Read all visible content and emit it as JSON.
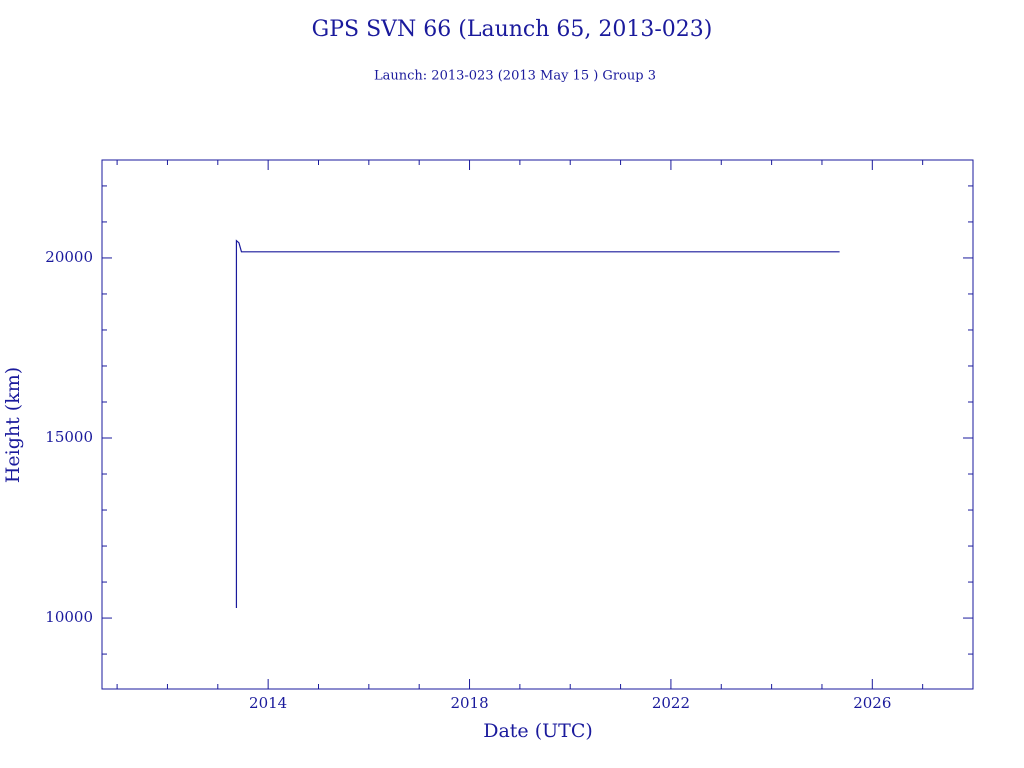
{
  "chart_data": {
    "type": "line",
    "title": "GPS SVN 66 (Launch 65, 2013-023)",
    "subtitle": "Launch: 2013-023  (2013 May 15 )  Group 3",
    "x_label": "Date (UTC)",
    "y_label": "Height (km)",
    "color": "#1a1a9c",
    "xlim": [
      2010.7,
      2028.0
    ],
    "ylim": [
      8030,
      22720
    ],
    "xticks": [
      2014,
      2018,
      2022,
      2026
    ],
    "yticks": [
      10000,
      15000,
      20000
    ],
    "xminorticks": [
      2011,
      2012,
      2013,
      2015,
      2016,
      2017,
      2019,
      2020,
      2021,
      2023,
      2024,
      2025,
      2027
    ],
    "yminorticks": [
      9000,
      11000,
      12000,
      13000,
      14000,
      16000,
      17000,
      18000,
      19000,
      21000,
      22000
    ],
    "x": [
      2013.37,
      2013.37,
      2013.42,
      2013.47,
      2025.35
    ],
    "values": [
      10280,
      20480,
      20420,
      20170,
      20170
    ]
  }
}
